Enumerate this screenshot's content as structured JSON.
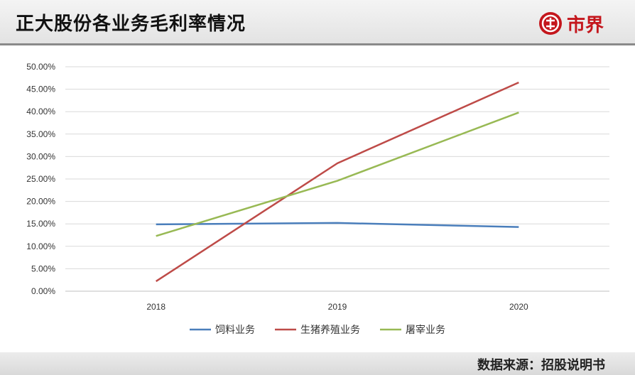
{
  "header": {
    "title": "正大股份各业务毛利率情况",
    "brand": "市界"
  },
  "footer": {
    "source": "数据来源：招股说明书"
  },
  "colors": {
    "brand_red": "#c4161c",
    "series": [
      "#4a7ebb",
      "#be4b48",
      "#98b954"
    ]
  },
  "chart_data": {
    "type": "line",
    "categories": [
      "2018",
      "2019",
      "2020"
    ],
    "series": [
      {
        "name": "饲料业务",
        "values": [
          14.9,
          15.2,
          14.3
        ]
      },
      {
        "name": "生猪养殖业务",
        "values": [
          2.2,
          28.5,
          46.5
        ]
      },
      {
        "name": "屠宰业务",
        "values": [
          12.3,
          24.6,
          39.8
        ]
      }
    ],
    "yticks": [
      "0.00%",
      "5.00%",
      "10.00%",
      "15.00%",
      "20.00%",
      "25.00%",
      "30.00%",
      "35.00%",
      "40.00%",
      "45.00%",
      "50.00%"
    ],
    "ylim": [
      0,
      50
    ],
    "grid": true,
    "legend": "bottom"
  }
}
